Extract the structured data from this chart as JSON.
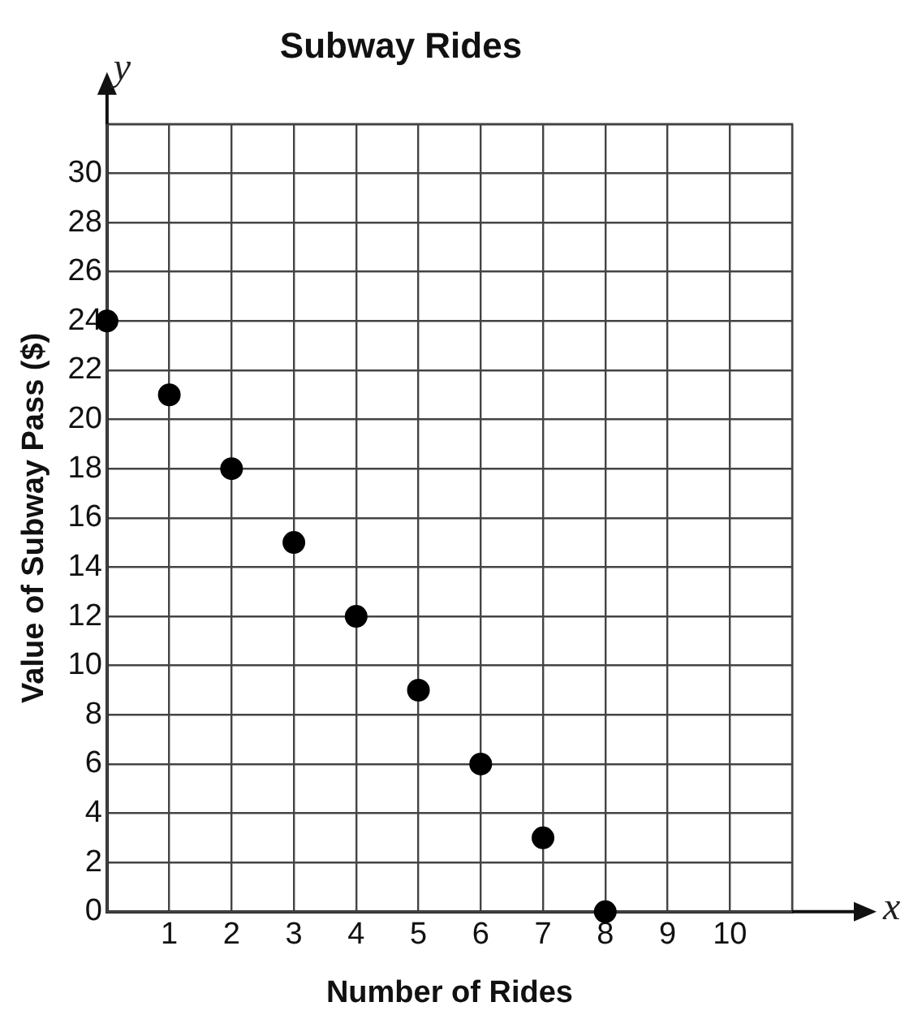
{
  "chart_data": {
    "type": "scatter",
    "title": "Subway Rides",
    "xlabel": "Number of Rides",
    "ylabel": "Value of Subway Pass ($)",
    "annotations": [
      "y",
      "x"
    ],
    "x": [
      0,
      1,
      2,
      3,
      4,
      5,
      6,
      7,
      8
    ],
    "series": [
      {
        "color": "#000000",
        "values": [
          24,
          21,
          18,
          15,
          12,
          9,
          6,
          3,
          0
        ]
      }
    ],
    "xlim": [
      0,
      11
    ],
    "xticks": [
      {
        "value": 0,
        "label": null
      },
      1,
      2,
      3,
      4,
      5,
      6,
      7,
      8,
      9,
      10,
      {
        "value": 11,
        "label": null
      }
    ],
    "ylim": [
      0,
      32
    ],
    "yticks": [
      0,
      2,
      4,
      6,
      8,
      10,
      12,
      14,
      16,
      18,
      20,
      22,
      24,
      26,
      28,
      30,
      {
        "value": 32,
        "label": null
      }
    ],
    "grid": true,
    "legend": false,
    "marker": "circle"
  }
}
